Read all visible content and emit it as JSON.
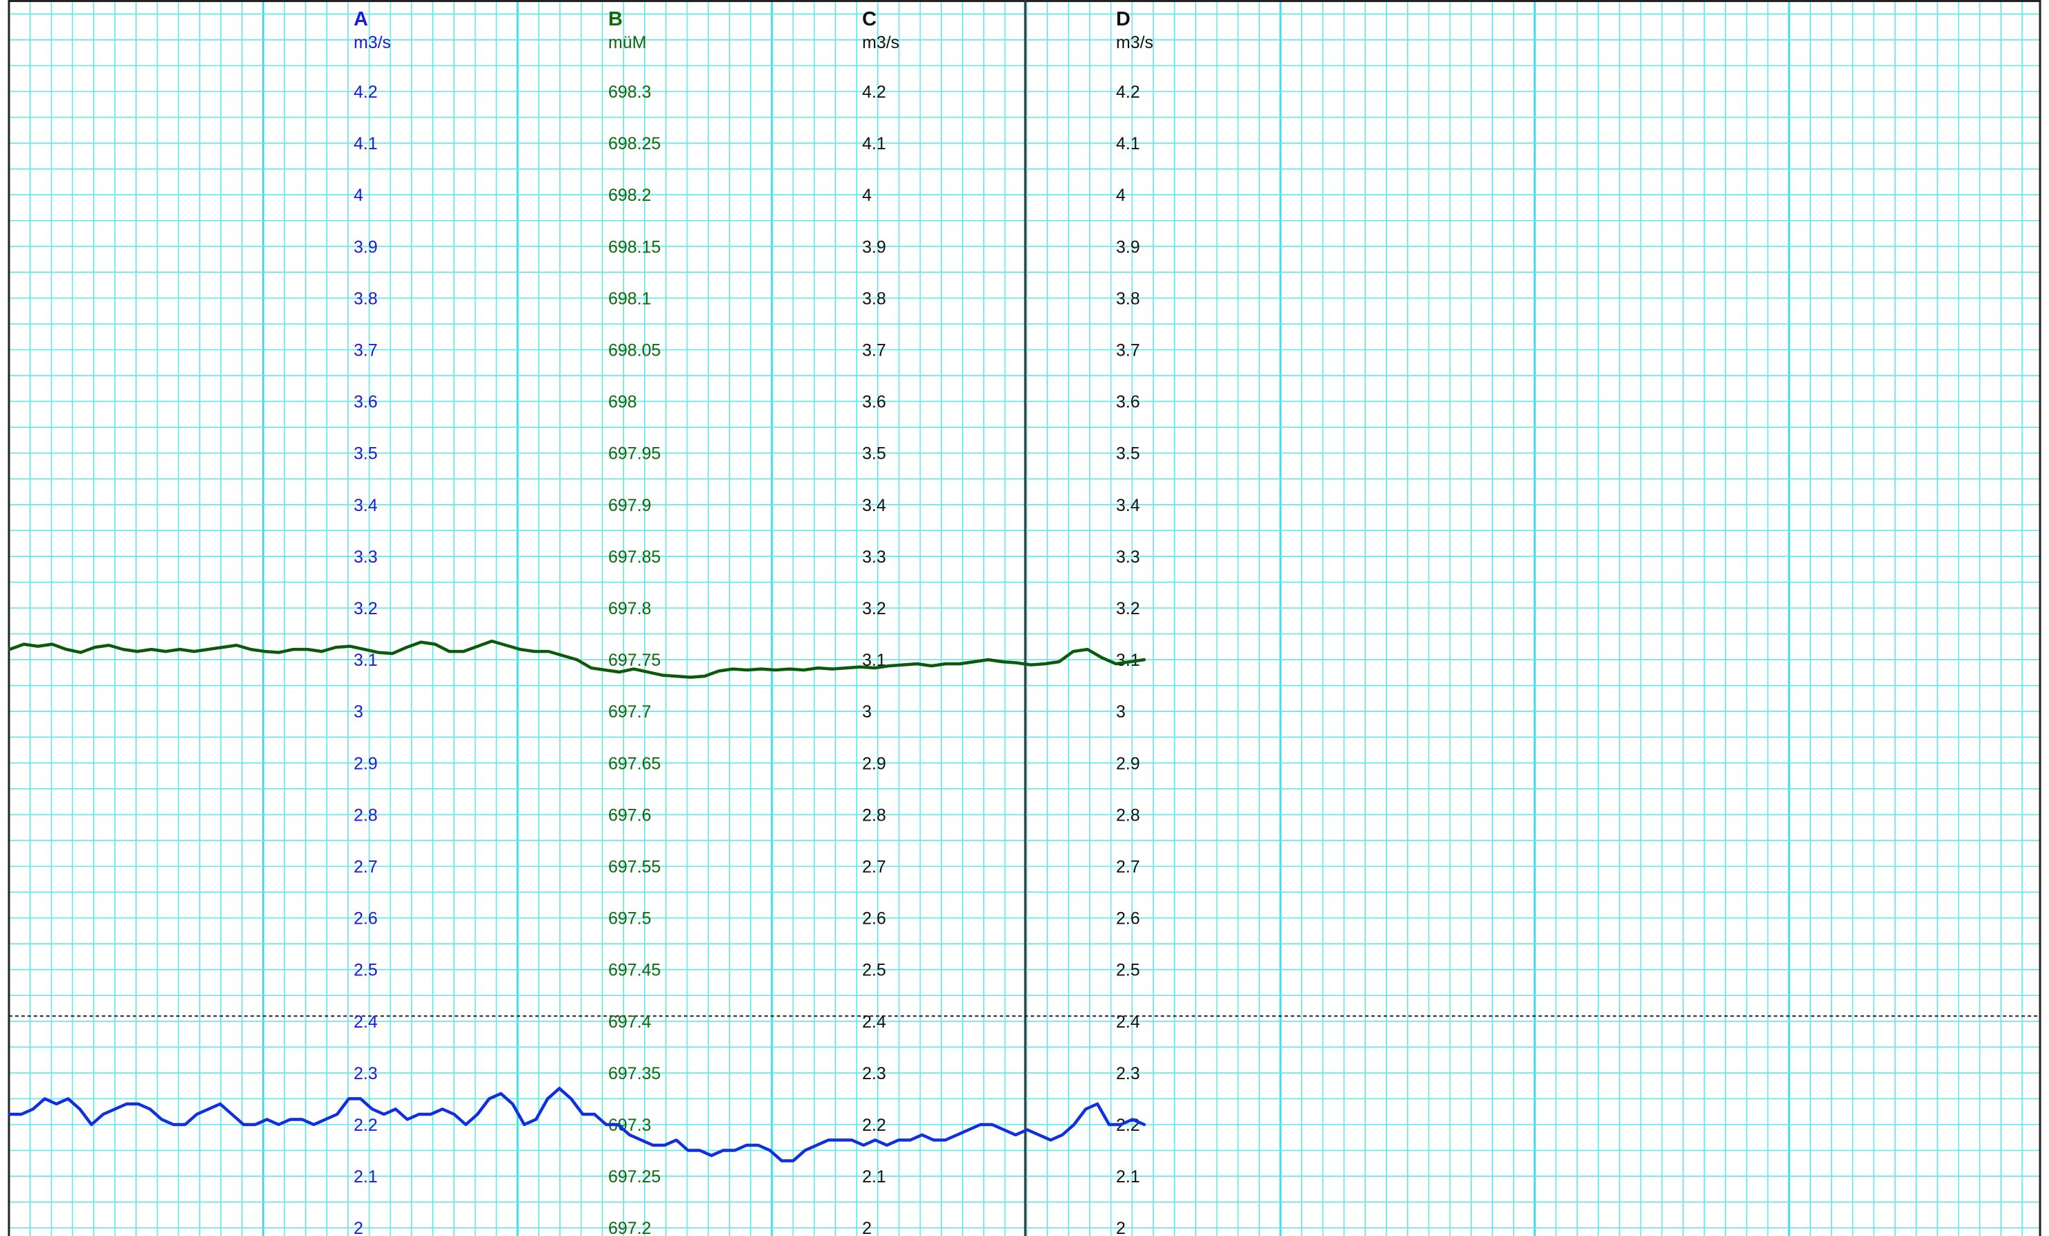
{
  "colors": {
    "grid": "#5fe8ea",
    "grid_major": "#45dde8",
    "axis_a": "#1a1adf",
    "axis_b": "#0d6b0d",
    "axis_cd": "#111111",
    "series_a": "#1030e0",
    "series_b": "#0b5a0b"
  },
  "chart_data": {
    "type": "line",
    "axes": [
      {
        "id": "A",
        "letter": "A",
        "unit": "m3/s",
        "ticks": [
          "4.2",
          "4.1",
          "4",
          "3.9",
          "3.8",
          "3.7",
          "3.6",
          "3.5",
          "3.4",
          "3.3",
          "3.2",
          "3.1",
          "3",
          "2.9",
          "2.8",
          "2.7",
          "2.6",
          "2.5",
          "2.4",
          "2.3",
          "2.2",
          "2.1",
          "2"
        ],
        "ylim": [
          2,
          4.2
        ]
      },
      {
        "id": "B",
        "letter": "B",
        "unit": "müM",
        "ticks": [
          "698.3",
          "698.25",
          "698.2",
          "698.15",
          "698.1",
          "698.05",
          "698",
          "697.95",
          "697.9",
          "697.85",
          "697.8",
          "697.75",
          "697.7",
          "697.65",
          "697.6",
          "697.55",
          "697.5",
          "697.45",
          "697.4",
          "697.35",
          "697.3",
          "697.25",
          "697.2"
        ],
        "ylim": [
          697.2,
          698.3
        ]
      },
      {
        "id": "C",
        "letter": "C",
        "unit": "m3/s",
        "ticks": [
          "4.2",
          "4.1",
          "4",
          "3.9",
          "3.8",
          "3.7",
          "3.6",
          "3.5",
          "3.4",
          "3.3",
          "3.2",
          "3.1",
          "3",
          "2.9",
          "2.8",
          "2.7",
          "2.6",
          "2.5",
          "2.4",
          "2.3",
          "2.2",
          "2.1",
          "2"
        ],
        "ylim": [
          2,
          4.2
        ]
      },
      {
        "id": "D",
        "letter": "D",
        "unit": "m3/s",
        "ticks": [
          "4.2",
          "4.1",
          "4",
          "3.9",
          "3.8",
          "3.7",
          "3.6",
          "3.5",
          "3.4",
          "3.3",
          "3.2",
          "3.1",
          "3",
          "2.9",
          "2.8",
          "2.7",
          "2.6",
          "2.5",
          "2.4",
          "2.3",
          "2.2",
          "2.1",
          "2"
        ],
        "ylim": [
          2,
          4.2
        ]
      }
    ],
    "reference_line": {
      "axis": "A",
      "value": 2.41
    },
    "series": [
      {
        "axis": "A",
        "values": [
          2.22,
          2.22,
          2.23,
          2.25,
          2.24,
          2.25,
          2.23,
          2.2,
          2.22,
          2.23,
          2.24,
          2.24,
          2.23,
          2.21,
          2.2,
          2.2,
          2.22,
          2.23,
          2.24,
          2.22,
          2.2,
          2.2,
          2.21,
          2.2,
          2.21,
          2.21,
          2.2,
          2.21,
          2.22,
          2.25,
          2.25,
          2.23,
          2.22,
          2.23,
          2.21,
          2.22,
          2.22,
          2.23,
          2.22,
          2.2,
          2.22,
          2.25,
          2.26,
          2.24,
          2.2,
          2.21,
          2.25,
          2.27,
          2.25,
          2.22,
          2.22,
          2.2,
          2.2,
          2.18,
          2.17,
          2.16,
          2.16,
          2.17,
          2.15,
          2.15,
          2.14,
          2.15,
          2.15,
          2.16,
          2.16,
          2.15,
          2.13,
          2.13,
          2.15,
          2.16,
          2.17,
          2.17,
          2.17,
          2.16,
          2.17,
          2.16,
          2.17,
          2.17,
          2.18,
          2.17,
          2.17,
          2.18,
          2.19,
          2.2,
          2.2,
          2.19,
          2.18,
          2.19,
          2.18,
          2.17,
          2.18,
          2.2,
          2.23,
          2.24,
          2.2,
          2.2,
          2.21,
          2.2
        ]
      },
      {
        "axis": "B",
        "values": [
          697.76,
          697.765,
          697.763,
          697.765,
          697.76,
          697.757,
          697.762,
          697.764,
          697.76,
          697.758,
          697.76,
          697.758,
          697.76,
          697.758,
          697.76,
          697.762,
          697.764,
          697.76,
          697.758,
          697.757,
          697.76,
          697.76,
          697.758,
          697.762,
          697.763,
          697.76,
          697.757,
          697.756,
          697.762,
          697.767,
          697.765,
          697.758,
          697.758,
          697.763,
          697.768,
          697.764,
          697.76,
          697.758,
          697.758,
          697.754,
          697.75,
          697.742,
          697.74,
          697.738,
          697.741,
          697.738,
          697.735,
          697.734,
          697.733,
          697.734,
          697.739,
          697.741,
          697.74,
          697.741,
          697.74,
          697.741,
          697.74,
          697.742,
          697.741,
          697.742,
          697.743,
          697.742,
          697.744,
          697.745,
          697.746,
          697.744,
          697.746,
          697.746,
          697.748,
          697.75,
          697.748,
          697.747,
          697.745,
          697.746,
          697.748,
          697.758,
          697.76,
          697.752,
          697.746,
          697.748,
          697.75
        ]
      }
    ]
  }
}
